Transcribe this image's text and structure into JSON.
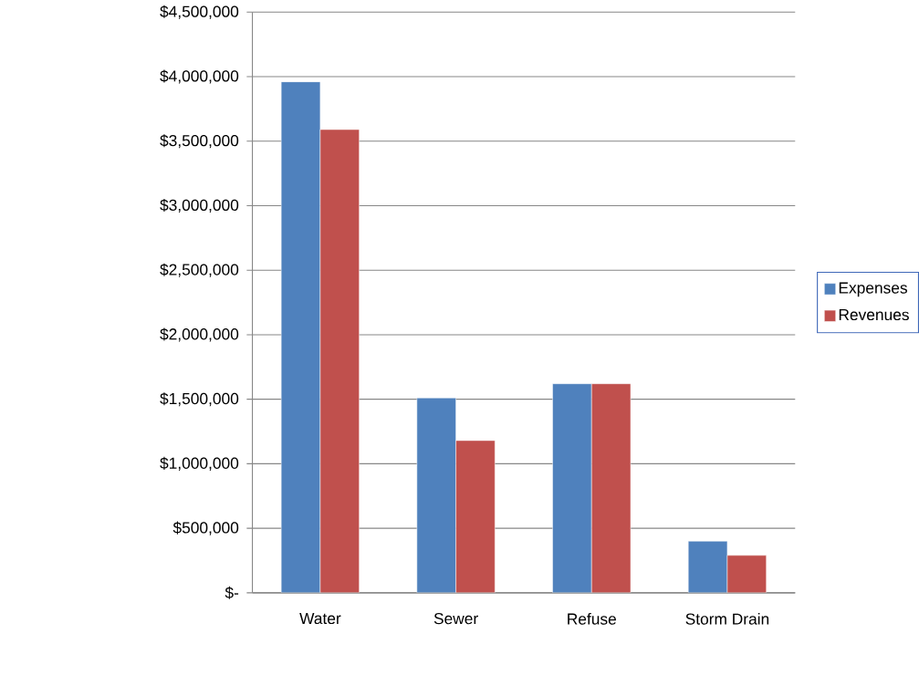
{
  "chart_data": {
    "type": "bar",
    "categories": [
      "Water",
      "Sewer",
      "Refuse",
      "Storm Drain"
    ],
    "series": [
      {
        "name": "Expenses",
        "color": "#4f81bd",
        "values": [
          3960000,
          1510000,
          1620000,
          400000
        ]
      },
      {
        "name": "Revenues",
        "color": "#c0504d",
        "values": [
          3590000,
          1180000,
          1620000,
          290000
        ]
      }
    ],
    "ylim": [
      0,
      4500000
    ],
    "yticks": [
      {
        "value": 0,
        "label": "$-"
      },
      {
        "value": 500000,
        "label": "$500,000"
      },
      {
        "value": 1000000,
        "label": "$1,000,000"
      },
      {
        "value": 1500000,
        "label": "$1,500,000"
      },
      {
        "value": 2000000,
        "label": "$2,000,000"
      },
      {
        "value": 2500000,
        "label": "$2,500,000"
      },
      {
        "value": 3000000,
        "label": "$3,000,000"
      },
      {
        "value": 3500000,
        "label": "$3,500,000"
      },
      {
        "value": 4000000,
        "label": "$4,000,000"
      },
      {
        "value": 4500000,
        "label": "$4,500,000"
      }
    ],
    "grid": "y",
    "legend": "right"
  }
}
